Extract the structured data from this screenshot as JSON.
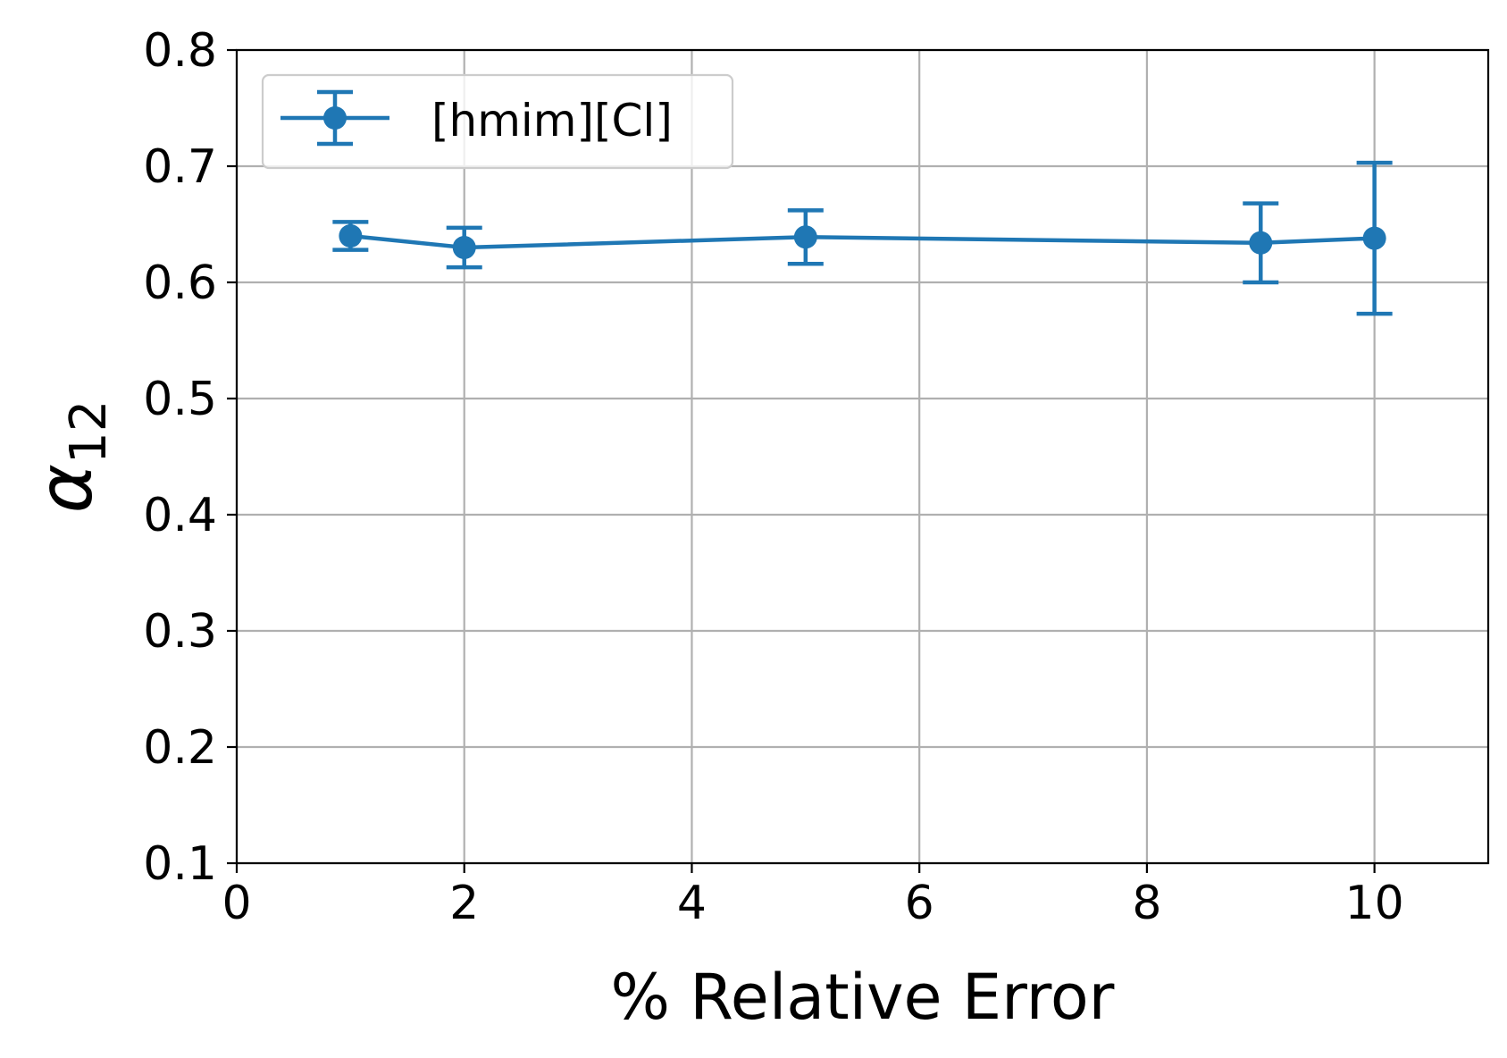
{
  "chart_data": {
    "type": "line",
    "xlabel": "% Relative Error",
    "ylabel_symbol": "α",
    "ylabel_subscript": "12",
    "xlim": [
      0,
      11
    ],
    "ylim": [
      0.1,
      0.8
    ],
    "xticks": [
      0,
      2,
      4,
      6,
      8,
      10
    ],
    "yticks": [
      0.1,
      0.2,
      0.3,
      0.4,
      0.5,
      0.6,
      0.7,
      0.8
    ],
    "xtick_labels": [
      "0",
      "2",
      "4",
      "6",
      "8",
      "10"
    ],
    "ytick_labels": [
      "0.1",
      "0.2",
      "0.3",
      "0.4",
      "0.5",
      "0.6",
      "0.7",
      "0.8"
    ],
    "grid": true,
    "legend_position": "top-left",
    "series": [
      {
        "name": "[hmim][Cl]",
        "color": "#1f77b4",
        "x": [
          1,
          2,
          5,
          9,
          10
        ],
        "y": [
          0.64,
          0.63,
          0.639,
          0.634,
          0.638
        ],
        "error": [
          0.012,
          0.017,
          0.023,
          0.034,
          0.065
        ]
      }
    ]
  }
}
